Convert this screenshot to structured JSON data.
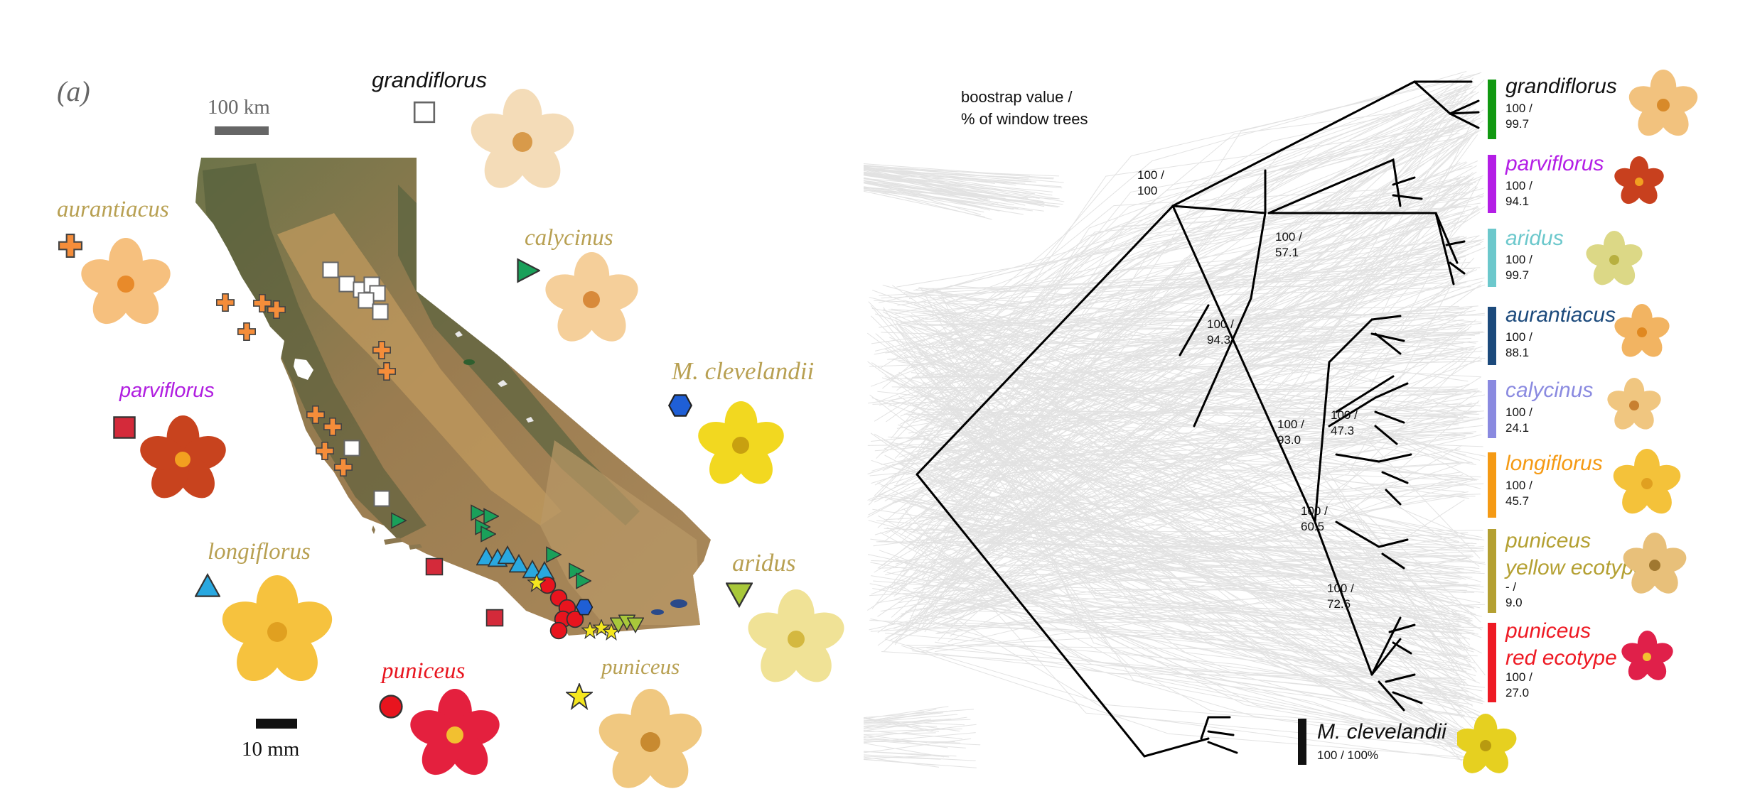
{
  "panel_label": "(a)",
  "map": {
    "scale_bar_label": "100 km",
    "flower_scale_label": "10 mm",
    "taxa": [
      {
        "id": "grandiflorus",
        "label": "grandiflorus",
        "marker": "open-square",
        "color": "#555555",
        "label_color": "#111111"
      },
      {
        "id": "aurantiacus",
        "label": "aurantiacus",
        "marker": "cross",
        "color": "#f58d3a",
        "label_color": "#b8a052"
      },
      {
        "id": "calycinus",
        "label": "calycinus",
        "marker": "triangle-right",
        "color": "#1aa05a",
        "label_color": "#b8a052"
      },
      {
        "id": "clevelandii",
        "label": "M. clevelandii",
        "marker": "hexagon",
        "color": "#1f5fd6",
        "label_color": "#b8a052"
      },
      {
        "id": "parviflorus",
        "label": "parviflorus",
        "marker": "square",
        "color": "#d42a3a",
        "label_color": "#b01ee0"
      },
      {
        "id": "longiflorus",
        "label": "longiflorus",
        "marker": "triangle-up",
        "color": "#29a8e0",
        "label_color": "#b8a052"
      },
      {
        "id": "aridus",
        "label": "aridus",
        "marker": "triangle-down",
        "color": "#a8c83a",
        "label_color": "#b8a052"
      },
      {
        "id": "puniceus_red",
        "label": "puniceus",
        "marker": "circle",
        "color": "#e8141e",
        "label_color": "#e8141e"
      },
      {
        "id": "puniceus_yellow",
        "label": "puniceus",
        "marker": "star",
        "color": "#f4e61e",
        "label_color": "#b8a052"
      }
    ]
  },
  "tree": {
    "legend_line1": "boostrap value /",
    "legend_line2": "% of window trees",
    "node_supports": [
      {
        "id": "root_grand",
        "line1": "100 /",
        "line2": "100"
      },
      {
        "id": "parv_arid",
        "line1": "100 /",
        "line2": "57.1"
      },
      {
        "id": "core",
        "line1": "100 /",
        "line2": "94.3"
      },
      {
        "id": "cal_long",
        "line1": "100 /",
        "line2": "47.3"
      },
      {
        "id": "aur_rest",
        "line1": "100 /",
        "line2": "93.0"
      },
      {
        "id": "lower",
        "line1": "100 /",
        "line2": "60.5"
      },
      {
        "id": "puniceus",
        "line1": "100 /",
        "line2": "72.6"
      }
    ],
    "clades": [
      {
        "id": "grandiflorus",
        "name": "grandiflorus",
        "color": "#119911",
        "name_color": "#111111",
        "support_line1": "100 /",
        "support_line2": "99.7"
      },
      {
        "id": "parviflorus",
        "name": "parviflorus",
        "color": "#b41ee6",
        "name_color": "#b41ee6",
        "support_line1": "100 /",
        "support_line2": "94.1"
      },
      {
        "id": "aridus",
        "name": "aridus",
        "color": "#6cc8cc",
        "name_color": "#6cc8cc",
        "support_line1": "100 /",
        "support_line2": "99.7"
      },
      {
        "id": "aurantiacus",
        "name": "aurantiacus",
        "color": "#1c4a7c",
        "name_color": "#1c4a7c",
        "support_line1": "100 /",
        "support_line2": "88.1"
      },
      {
        "id": "calycinus",
        "name": "calycinus",
        "color": "#8a8ae0",
        "name_color": "#8a8ae0",
        "support_line1": "100 /",
        "support_line2": "24.1"
      },
      {
        "id": "longiflorus",
        "name": "longiflorus",
        "color": "#f59a14",
        "name_color": "#f59a14",
        "support_line1": "100 /",
        "support_line2": "45.7"
      },
      {
        "id": "puniceus_yellow",
        "name_line1": "puniceus",
        "name_line2": "yellow ecotype",
        "color": "#b4a032",
        "name_color": "#b4a032",
        "support_line1": "- /",
        "support_line2": "9.0"
      },
      {
        "id": "puniceus_red",
        "name_line1": "puniceus",
        "name_line2": "red ecotype",
        "color": "#ee1a24",
        "name_color": "#ee1a24",
        "support_line1": "100 /",
        "support_line2": "27.0"
      },
      {
        "id": "clevelandii",
        "name": "M. clevelandii",
        "color": "#111111",
        "name_color": "#111111",
        "support": "100 / 100%"
      }
    ]
  },
  "colors": {
    "tree_gray": "#9a9a9a",
    "tree_black": "#000000",
    "map_land": "#8e7a52",
    "map_mountain": "#5f6a44",
    "map_valley": "#b4945c"
  }
}
